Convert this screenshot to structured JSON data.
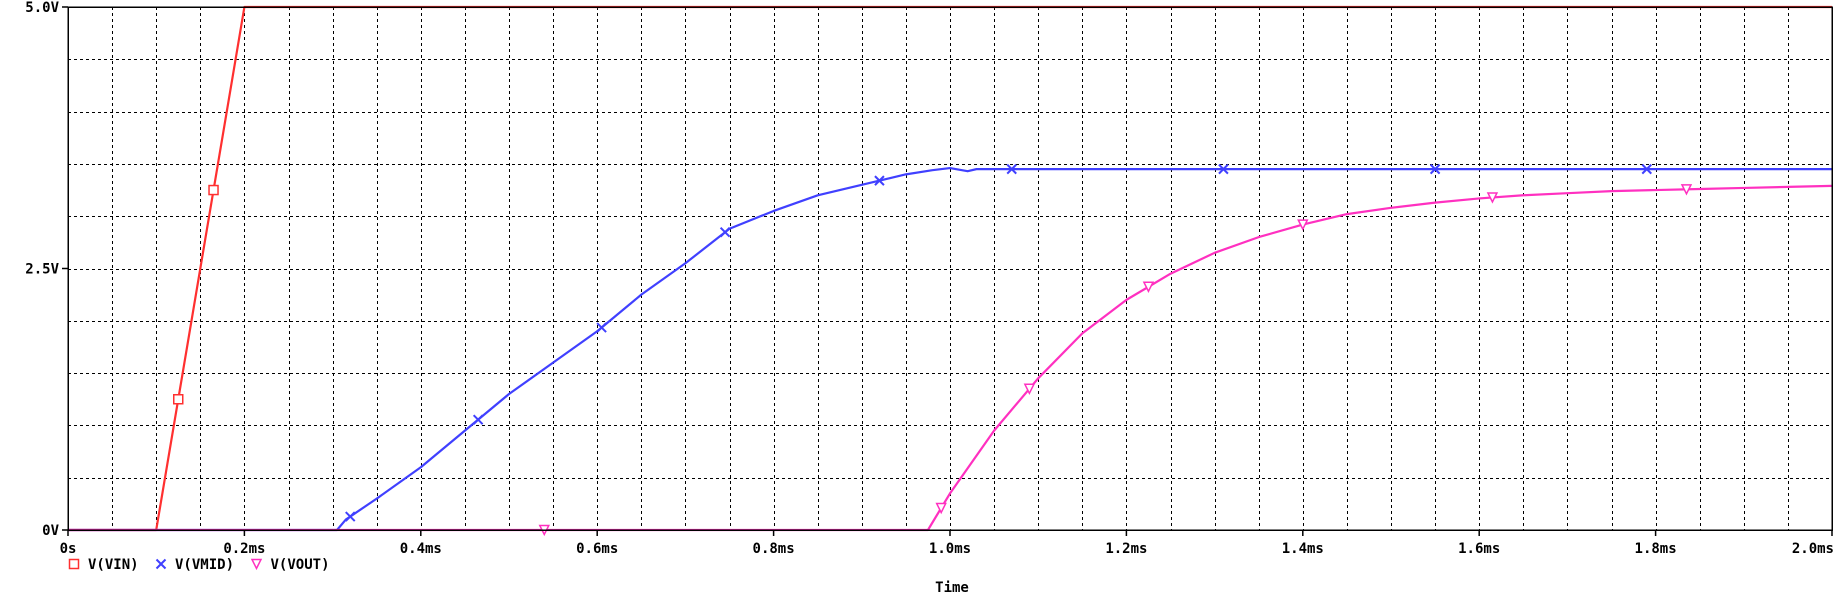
{
  "chart_data": {
    "type": "line",
    "xlabel": "Time",
    "ylabel": "",
    "xlim": [
      0,
      2.0
    ],
    "ylim": [
      0,
      5.0
    ],
    "x_unit": "ms",
    "x_ticks": [
      {
        "value": 0,
        "label": "0s"
      },
      {
        "value": 0.2,
        "label": "0.2ms"
      },
      {
        "value": 0.4,
        "label": "0.4ms"
      },
      {
        "value": 0.6,
        "label": "0.6ms"
      },
      {
        "value": 0.8,
        "label": "0.8ms"
      },
      {
        "value": 1.0,
        "label": "1.0ms"
      },
      {
        "value": 1.2,
        "label": "1.2ms"
      },
      {
        "value": 1.4,
        "label": "1.4ms"
      },
      {
        "value": 1.6,
        "label": "1.6ms"
      },
      {
        "value": 1.8,
        "label": "1.8ms"
      },
      {
        "value": 2.0,
        "label": "2.0ms"
      }
    ],
    "y_ticks": [
      {
        "value": 0,
        "label": "0V"
      },
      {
        "value": 2.5,
        "label": "2.5V"
      },
      {
        "value": 5.0,
        "label": "5.0V"
      }
    ],
    "x_minor_step": 0.05,
    "y_minor_step": 0.5,
    "grid": true,
    "legend_position": "bottom-left",
    "series": [
      {
        "name": "V(VIN)",
        "marker": "square",
        "color": "#ff3030",
        "x": [
          0,
          0.1,
          0.2,
          2.0
        ],
        "y": [
          0,
          0,
          5.0,
          5.0
        ],
        "marker_x": [
          0.125,
          0.165
        ]
      },
      {
        "name": "V(VMID)",
        "marker": "x",
        "color": "#4040ff",
        "x": [
          0,
          0.305,
          0.315,
          0.35,
          0.4,
          0.45,
          0.5,
          0.55,
          0.6,
          0.65,
          0.7,
          0.75,
          0.8,
          0.85,
          0.9,
          0.95,
          0.98,
          1.0,
          1.02,
          1.03,
          2.0
        ],
        "y": [
          0,
          0,
          0.1,
          0.3,
          0.6,
          0.95,
          1.3,
          1.6,
          1.9,
          2.25,
          2.55,
          2.88,
          3.05,
          3.2,
          3.3,
          3.4,
          3.44,
          3.46,
          3.43,
          3.45,
          3.45
        ],
        "marker_x": [
          0.32,
          0.465,
          0.605,
          0.745,
          0.92,
          1.07,
          1.31,
          1.55,
          1.79
        ]
      },
      {
        "name": "V(VOUT)",
        "marker": "triangle-down",
        "color": "#ff30c0",
        "x": [
          0,
          0.975,
          1.0,
          1.05,
          1.1,
          1.15,
          1.2,
          1.25,
          1.3,
          1.35,
          1.4,
          1.45,
          1.5,
          1.55,
          1.6,
          1.65,
          1.7,
          1.75,
          1.8,
          1.85,
          1.9,
          1.95,
          2.0
        ],
        "y": [
          0,
          0,
          0.35,
          0.95,
          1.45,
          1.88,
          2.2,
          2.45,
          2.65,
          2.8,
          2.92,
          3.02,
          3.08,
          3.13,
          3.17,
          3.2,
          3.22,
          3.24,
          3.25,
          3.26,
          3.27,
          3.28,
          3.29
        ],
        "marker_x": [
          0.54,
          0.99,
          1.09,
          1.225,
          1.4,
          1.615,
          1.835
        ]
      }
    ]
  }
}
